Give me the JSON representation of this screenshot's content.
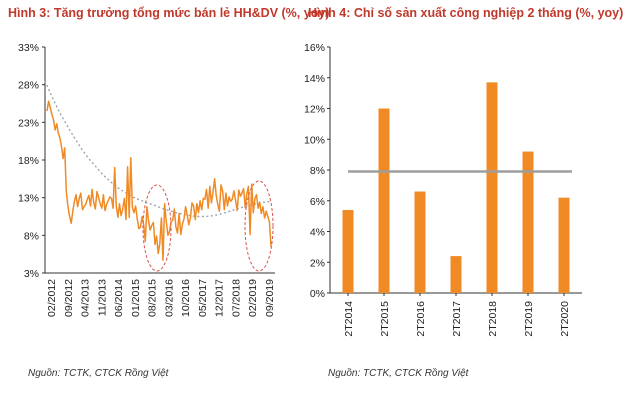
{
  "left": {
    "title": "Hình 3: Tăng trưởng tổng mức bán lẻ HH&DV (%, yoy)",
    "source": "Nguồn: TCTK, CTCK Rồng Việt"
  },
  "right": {
    "title": "Hình 4: Chỉ số sản xuất công nghiệp 2 tháng (%, yoy)",
    "source": "Nguồn: TCTK, CTCK Rồng Việt"
  },
  "colors": {
    "title": "#c0392b",
    "series": "#f08a24",
    "trend": "#9aa5b1",
    "refline": "#9e9e9e",
    "highlight": "#d9534f"
  },
  "chart_data": [
    {
      "type": "line",
      "title": "Hình 3: Tăng trưởng tổng mức bán lẻ HH&DV (%, yoy)",
      "xlabel": "",
      "ylabel": "",
      "ylim": [
        3,
        33
      ],
      "y_ticks": [
        3,
        8,
        13,
        18,
        23,
        28,
        33
      ],
      "y_tick_labels": [
        "3%",
        "8%",
        "13%",
        "18%",
        "23%",
        "28%",
        "33%"
      ],
      "x_tick_labels": [
        "02/2012",
        "09/2012",
        "04/2013",
        "11/2013",
        "06/2014",
        "01/2015",
        "08/2015",
        "03/2016",
        "10/2016",
        "05/2017",
        "12/2017",
        "07/2018",
        "02/2019",
        "09/2019"
      ],
      "grid": false,
      "series": [
        {
          "style": "solid",
          "values": [
            24.5,
            25.8,
            25.0,
            24.1,
            23.4,
            22.0,
            22.8,
            21.6,
            20.9,
            19.8,
            18.2,
            19.6,
            13.8,
            11.9,
            10.5,
            9.6,
            11.2,
            12.5,
            13.4,
            11.8,
            12.9,
            13.6,
            11.4,
            11.8,
            12.1,
            12.8,
            13.3,
            11.9,
            14.1,
            12.4,
            11.5,
            13.8,
            13.0,
            12.2,
            11.6,
            13.4,
            11.3,
            12.1,
            12.6,
            13.1,
            12.9,
            11.6,
            17.0,
            11.9,
            10.4,
            12.2,
            10.6,
            11.5,
            12.9,
            10.1,
            17.1,
            10.4,
            18.3,
            11.7,
            11.0,
            11.9,
            10.2,
            8.9,
            9.1,
            10.5,
            9.4,
            7.2,
            11.8,
            10.0,
            8.7,
            9.3,
            9.7,
            6.8,
            7.9,
            5.6,
            6.9,
            10.3,
            4.7,
            12.2,
            9.8,
            8.0,
            8.5,
            9.8,
            10.0,
            11.5,
            9.1,
            8.3,
            10.9,
            8.1,
            9.5,
            10.2,
            11.8,
            10.7,
            9.4,
            10.3,
            12.3,
            11.9,
            10.1,
            12.2,
            11.0,
            12.6,
            11.4,
            12.9,
            12.8,
            14.1,
            11.6,
            14.5,
            12.3,
            13.7,
            15.5,
            13.3,
            12.1,
            11.2,
            14.7,
            13.8,
            11.4,
            13.6,
            11.9,
            13.1,
            12.5,
            12.8,
            13.9,
            12.7,
            11.3,
            14.0,
            13.2,
            13.6,
            14.2,
            11.7,
            13.5,
            14.5,
            8.1,
            14.8,
            11.0,
            12.9,
            13.4,
            11.6,
            12.4,
            10.9,
            11.8,
            10.3,
            11.2,
            10.5,
            9.8,
            6.5
          ]
        },
        {
          "style": "dotted",
          "values": [
            28.5,
            26.3,
            24.3,
            22.6,
            21.0,
            19.5,
            18.2,
            17.1,
            16.0,
            15.1,
            14.3,
            13.7,
            13.1,
            12.7,
            12.3,
            12.0,
            11.6,
            11.3,
            11.0,
            10.8,
            10.6,
            10.5,
            10.5,
            10.6,
            10.8,
            11.1,
            11.4,
            11.7,
            12.0,
            12.2,
            12.4,
            12.5
          ]
        }
      ],
      "annotations": [
        "circle around 03/2016 dip",
        "circle around 09/2019 end"
      ]
    },
    {
      "type": "bar",
      "title": "Hình 4: Chỉ số sản xuất công nghiệp 2 tháng (%, yoy)",
      "xlabel": "",
      "ylabel": "",
      "categories": [
        "2T2014",
        "2T2015",
        "2T2016",
        "2T2017",
        "2T2018",
        "2T2019",
        "2T2020"
      ],
      "values": [
        5.4,
        12.0,
        6.6,
        2.4,
        13.7,
        9.2,
        6.2
      ],
      "reference_line": 7.9,
      "ylim": [
        0,
        16
      ],
      "y_ticks": [
        0,
        2,
        4,
        6,
        8,
        10,
        12,
        14,
        16
      ],
      "y_tick_labels": [
        "0%",
        "2%",
        "4%",
        "6%",
        "8%",
        "10%",
        "12%",
        "14%",
        "16%"
      ],
      "grid": false
    }
  ]
}
